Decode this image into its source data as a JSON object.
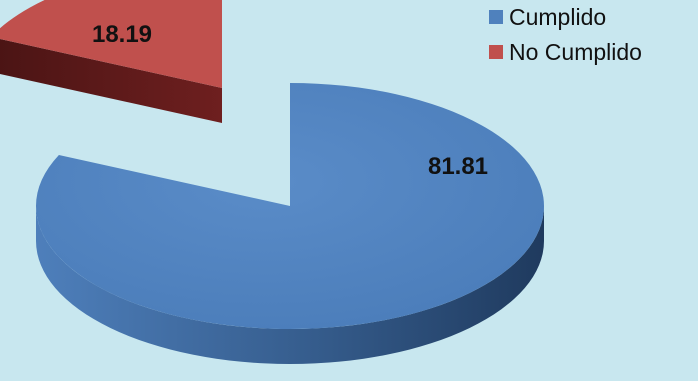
{
  "chart_data": {
    "type": "pie",
    "three_d": true,
    "exploded": "No Cumplido",
    "slices": [
      {
        "name": "Cumplido",
        "value": 81.81,
        "label": "81.81",
        "color": "#4f81bd"
      },
      {
        "name": "No Cumplido",
        "value": 18.19,
        "label": "18.19",
        "color": "#c0504d"
      }
    ],
    "legend": {
      "position": "top-right"
    }
  }
}
